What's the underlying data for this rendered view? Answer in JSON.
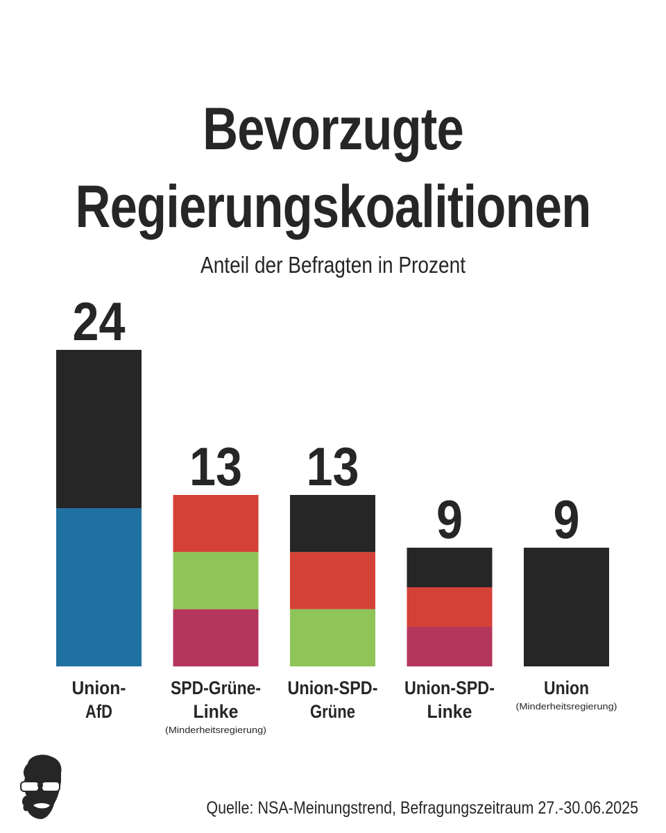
{
  "title_line1": "Bevorzugte",
  "title_line2": "Regierungskoalitionen",
  "subtitle": "Anteil der Befragten in Prozent",
  "source": "Quelle: NSA-Meinungstrend, Befragungszeitraum 27.-30.06.2025",
  "colors": {
    "union": "#262626",
    "afd": "#2170a2",
    "spd": "#d44136",
    "gruene": "#8fc459",
    "linke": "#b5365d"
  },
  "chart_data": {
    "type": "bar",
    "stacked": true,
    "title": "Bevorzugte Regierungskoalitionen",
    "subtitle": "Anteil der Befragten in Prozent",
    "categories": [
      {
        "label_lines": [
          "Union-",
          "AfD"
        ],
        "note": "",
        "value": 24,
        "segments": [
          "union",
          "afd"
        ]
      },
      {
        "label_lines": [
          "SPD-Grüne-",
          "Linke"
        ],
        "note": "(Minderheitsregierung)",
        "value": 13,
        "segments": [
          "spd",
          "gruene",
          "linke"
        ]
      },
      {
        "label_lines": [
          "Union-SPD-",
          "Grüne"
        ],
        "note": "",
        "value": 13,
        "segments": [
          "union",
          "spd",
          "gruene"
        ]
      },
      {
        "label_lines": [
          "Union-SPD-",
          "Linke"
        ],
        "note": "",
        "value": 9,
        "segments": [
          "union",
          "spd",
          "linke"
        ]
      },
      {
        "label_lines": [
          "Union"
        ],
        "note": "(Minderheitsregierung)",
        "value": 9,
        "segments": [
          "union"
        ]
      }
    ],
    "values": [
      24,
      13,
      13,
      9,
      9
    ],
    "ylim": [
      0,
      24
    ],
    "grid": false,
    "legend": "none"
  }
}
